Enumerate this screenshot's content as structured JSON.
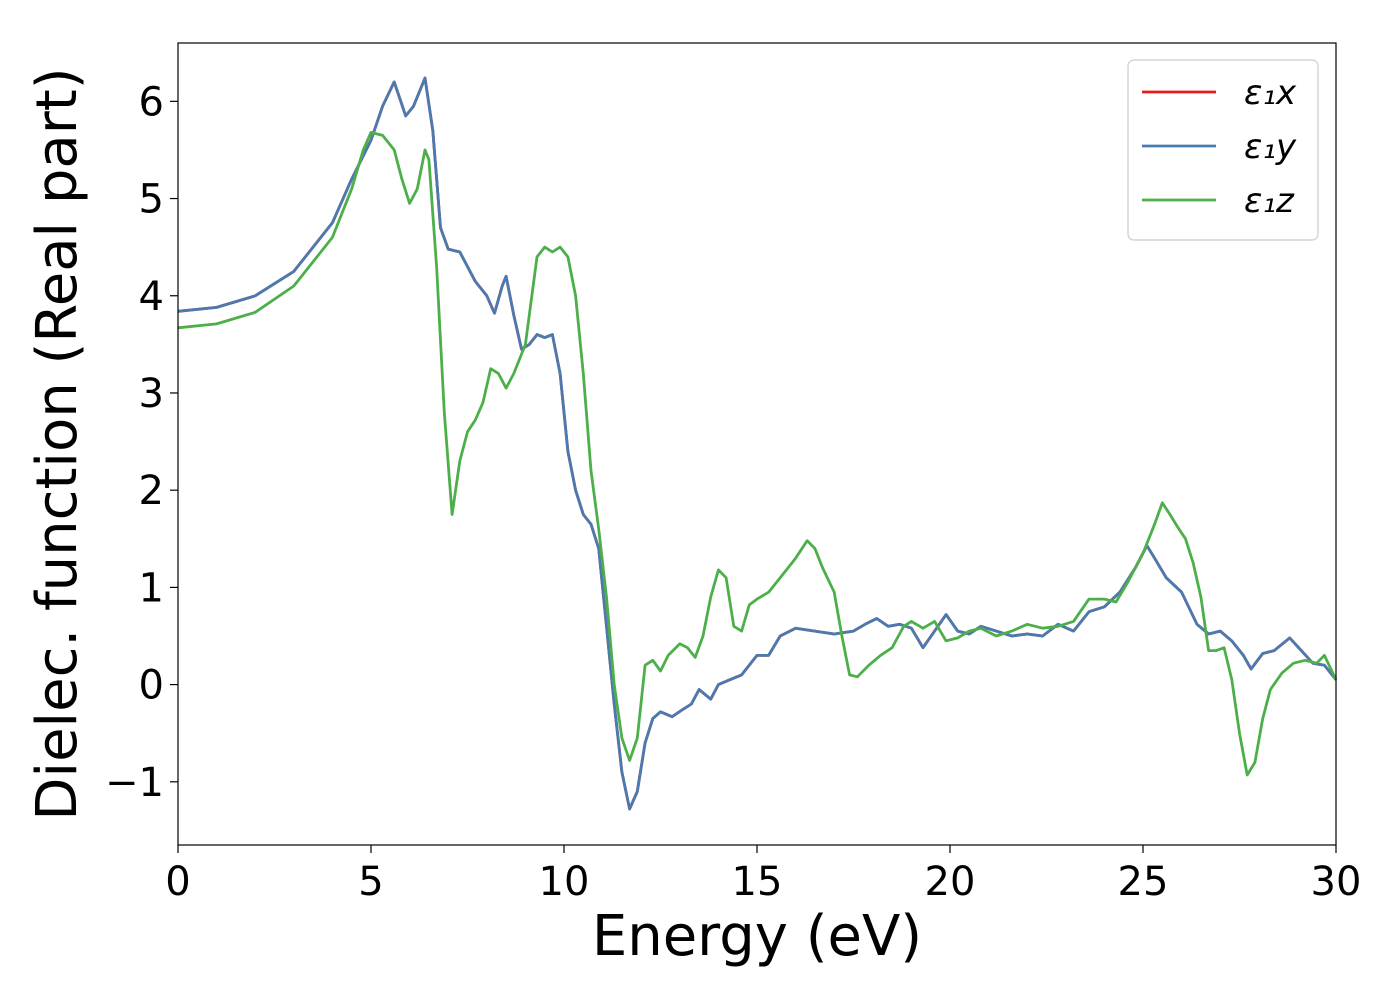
{
  "chart_data": {
    "type": "line",
    "xlabel": "Energy (eV)",
    "ylabel": "Dielec. function (Real part)",
    "xlim": [
      0,
      30
    ],
    "ylim": [
      -1.65,
      6.6
    ],
    "xticks": [
      0,
      5,
      10,
      15,
      20,
      25,
      30
    ],
    "yticks": [
      -1,
      0,
      1,
      2,
      3,
      4,
      5,
      6
    ],
    "xtick_labels": [
      "0",
      "5",
      "10",
      "15",
      "20",
      "25",
      "30"
    ],
    "ytick_labels": [
      "−1",
      "0",
      "1",
      "2",
      "3",
      "4",
      "5",
      "6"
    ],
    "grid": false,
    "legend_position": "top-right",
    "series": [
      {
        "name": "ε₁x",
        "color": "#e41a1c",
        "points": [
          [
            0,
            3.84
          ],
          [
            1,
            3.88
          ],
          [
            2,
            4.0
          ],
          [
            3,
            4.25
          ],
          [
            4,
            4.75
          ],
          [
            4.5,
            5.2
          ],
          [
            5,
            5.6
          ],
          [
            5.3,
            5.95
          ],
          [
            5.6,
            6.2
          ],
          [
            5.9,
            5.85
          ],
          [
            6.1,
            5.95
          ],
          [
            6.4,
            6.24
          ],
          [
            6.6,
            5.7
          ],
          [
            6.8,
            4.7
          ],
          [
            7.0,
            4.48
          ],
          [
            7.3,
            4.45
          ],
          [
            7.7,
            4.15
          ],
          [
            8.0,
            4.0
          ],
          [
            8.2,
            3.82
          ],
          [
            8.4,
            4.1
          ],
          [
            8.5,
            4.2
          ],
          [
            8.7,
            3.8
          ],
          [
            8.9,
            3.45
          ],
          [
            9.1,
            3.5
          ],
          [
            9.3,
            3.6
          ],
          [
            9.5,
            3.57
          ],
          [
            9.7,
            3.6
          ],
          [
            9.9,
            3.2
          ],
          [
            10.1,
            2.4
          ],
          [
            10.3,
            2.0
          ],
          [
            10.5,
            1.75
          ],
          [
            10.7,
            1.65
          ],
          [
            10.9,
            1.4
          ],
          [
            11.1,
            0.6
          ],
          [
            11.3,
            -0.2
          ],
          [
            11.5,
            -0.9
          ],
          [
            11.7,
            -1.28
          ],
          [
            11.9,
            -1.1
          ],
          [
            12.1,
            -0.6
          ],
          [
            12.3,
            -0.35
          ],
          [
            12.5,
            -0.28
          ],
          [
            12.8,
            -0.33
          ],
          [
            13.1,
            -0.25
          ],
          [
            13.3,
            -0.2
          ],
          [
            13.5,
            -0.05
          ],
          [
            13.8,
            -0.15
          ],
          [
            14.0,
            0.0
          ],
          [
            14.3,
            0.05
          ],
          [
            14.6,
            0.1
          ],
          [
            15.0,
            0.3
          ],
          [
            15.3,
            0.3
          ],
          [
            15.6,
            0.5
          ],
          [
            16.0,
            0.58
          ],
          [
            16.5,
            0.55
          ],
          [
            17.0,
            0.52
          ],
          [
            17.5,
            0.55
          ],
          [
            17.8,
            0.62
          ],
          [
            18.1,
            0.68
          ],
          [
            18.4,
            0.6
          ],
          [
            18.7,
            0.62
          ],
          [
            19.0,
            0.58
          ],
          [
            19.3,
            0.38
          ],
          [
            19.6,
            0.55
          ],
          [
            19.9,
            0.72
          ],
          [
            20.2,
            0.55
          ],
          [
            20.5,
            0.52
          ],
          [
            20.8,
            0.6
          ],
          [
            21.2,
            0.55
          ],
          [
            21.6,
            0.5
          ],
          [
            22.0,
            0.52
          ],
          [
            22.4,
            0.5
          ],
          [
            22.8,
            0.62
          ],
          [
            23.2,
            0.55
          ],
          [
            23.6,
            0.75
          ],
          [
            24.0,
            0.8
          ],
          [
            24.4,
            0.95
          ],
          [
            24.8,
            1.2
          ],
          [
            25.1,
            1.43
          ],
          [
            25.3,
            1.3
          ],
          [
            25.6,
            1.1
          ],
          [
            26.0,
            0.95
          ],
          [
            26.4,
            0.62
          ],
          [
            26.7,
            0.52
          ],
          [
            27.0,
            0.55
          ],
          [
            27.3,
            0.45
          ],
          [
            27.6,
            0.3
          ],
          [
            27.8,
            0.16
          ],
          [
            28.1,
            0.32
          ],
          [
            28.4,
            0.35
          ],
          [
            28.8,
            0.48
          ],
          [
            29.1,
            0.35
          ],
          [
            29.4,
            0.22
          ],
          [
            29.7,
            0.2
          ],
          [
            30.0,
            0.05
          ]
        ]
      },
      {
        "name": "ε₁y",
        "color": "#4a7bb0",
        "points": [
          [
            0,
            3.84
          ],
          [
            1,
            3.88
          ],
          [
            2,
            4.0
          ],
          [
            3,
            4.25
          ],
          [
            4,
            4.75
          ],
          [
            4.5,
            5.2
          ],
          [
            5,
            5.6
          ],
          [
            5.3,
            5.95
          ],
          [
            5.6,
            6.2
          ],
          [
            5.9,
            5.85
          ],
          [
            6.1,
            5.95
          ],
          [
            6.4,
            6.24
          ],
          [
            6.6,
            5.7
          ],
          [
            6.8,
            4.7
          ],
          [
            7.0,
            4.48
          ],
          [
            7.3,
            4.45
          ],
          [
            7.7,
            4.15
          ],
          [
            8.0,
            4.0
          ],
          [
            8.2,
            3.82
          ],
          [
            8.4,
            4.1
          ],
          [
            8.5,
            4.2
          ],
          [
            8.7,
            3.8
          ],
          [
            8.9,
            3.45
          ],
          [
            9.1,
            3.5
          ],
          [
            9.3,
            3.6
          ],
          [
            9.5,
            3.57
          ],
          [
            9.7,
            3.6
          ],
          [
            9.9,
            3.2
          ],
          [
            10.1,
            2.4
          ],
          [
            10.3,
            2.0
          ],
          [
            10.5,
            1.75
          ],
          [
            10.7,
            1.65
          ],
          [
            10.9,
            1.4
          ],
          [
            11.1,
            0.6
          ],
          [
            11.3,
            -0.2
          ],
          [
            11.5,
            -0.9
          ],
          [
            11.7,
            -1.28
          ],
          [
            11.9,
            -1.1
          ],
          [
            12.1,
            -0.6
          ],
          [
            12.3,
            -0.35
          ],
          [
            12.5,
            -0.28
          ],
          [
            12.8,
            -0.33
          ],
          [
            13.1,
            -0.25
          ],
          [
            13.3,
            -0.2
          ],
          [
            13.5,
            -0.05
          ],
          [
            13.8,
            -0.15
          ],
          [
            14.0,
            0.0
          ],
          [
            14.3,
            0.05
          ],
          [
            14.6,
            0.1
          ],
          [
            15.0,
            0.3
          ],
          [
            15.3,
            0.3
          ],
          [
            15.6,
            0.5
          ],
          [
            16.0,
            0.58
          ],
          [
            16.5,
            0.55
          ],
          [
            17.0,
            0.52
          ],
          [
            17.5,
            0.55
          ],
          [
            17.8,
            0.62
          ],
          [
            18.1,
            0.68
          ],
          [
            18.4,
            0.6
          ],
          [
            18.7,
            0.62
          ],
          [
            19.0,
            0.58
          ],
          [
            19.3,
            0.38
          ],
          [
            19.6,
            0.55
          ],
          [
            19.9,
            0.72
          ],
          [
            20.2,
            0.55
          ],
          [
            20.5,
            0.52
          ],
          [
            20.8,
            0.6
          ],
          [
            21.2,
            0.55
          ],
          [
            21.6,
            0.5
          ],
          [
            22.0,
            0.52
          ],
          [
            22.4,
            0.5
          ],
          [
            22.8,
            0.62
          ],
          [
            23.2,
            0.55
          ],
          [
            23.6,
            0.75
          ],
          [
            24.0,
            0.8
          ],
          [
            24.4,
            0.95
          ],
          [
            24.8,
            1.2
          ],
          [
            25.1,
            1.43
          ],
          [
            25.3,
            1.3
          ],
          [
            25.6,
            1.1
          ],
          [
            26.0,
            0.95
          ],
          [
            26.4,
            0.62
          ],
          [
            26.7,
            0.52
          ],
          [
            27.0,
            0.55
          ],
          [
            27.3,
            0.45
          ],
          [
            27.6,
            0.3
          ],
          [
            27.8,
            0.16
          ],
          [
            28.1,
            0.32
          ],
          [
            28.4,
            0.35
          ],
          [
            28.8,
            0.48
          ],
          [
            29.1,
            0.35
          ],
          [
            29.4,
            0.22
          ],
          [
            29.7,
            0.2
          ],
          [
            30.0,
            0.05
          ]
        ]
      },
      {
        "name": "ε₁z",
        "color": "#4daf4a",
        "points": [
          [
            0,
            3.67
          ],
          [
            1,
            3.71
          ],
          [
            2,
            3.83
          ],
          [
            3,
            4.1
          ],
          [
            4,
            4.6
          ],
          [
            4.5,
            5.1
          ],
          [
            4.8,
            5.5
          ],
          [
            5.0,
            5.68
          ],
          [
            5.3,
            5.65
          ],
          [
            5.6,
            5.5
          ],
          [
            5.8,
            5.2
          ],
          [
            6.0,
            4.95
          ],
          [
            6.2,
            5.1
          ],
          [
            6.4,
            5.5
          ],
          [
            6.5,
            5.4
          ],
          [
            6.7,
            4.3
          ],
          [
            6.9,
            2.8
          ],
          [
            7.1,
            1.75
          ],
          [
            7.3,
            2.3
          ],
          [
            7.5,
            2.6
          ],
          [
            7.7,
            2.72
          ],
          [
            7.9,
            2.9
          ],
          [
            8.1,
            3.25
          ],
          [
            8.3,
            3.2
          ],
          [
            8.5,
            3.05
          ],
          [
            8.7,
            3.2
          ],
          [
            9.0,
            3.5
          ],
          [
            9.3,
            4.4
          ],
          [
            9.5,
            4.5
          ],
          [
            9.7,
            4.45
          ],
          [
            9.9,
            4.5
          ],
          [
            10.1,
            4.4
          ],
          [
            10.3,
            4.0
          ],
          [
            10.5,
            3.2
          ],
          [
            10.7,
            2.2
          ],
          [
            10.9,
            1.6
          ],
          [
            11.1,
            0.9
          ],
          [
            11.3,
            0.0
          ],
          [
            11.5,
            -0.55
          ],
          [
            11.7,
            -0.78
          ],
          [
            11.9,
            -0.55
          ],
          [
            12.1,
            0.2
          ],
          [
            12.3,
            0.25
          ],
          [
            12.5,
            0.14
          ],
          [
            12.7,
            0.3
          ],
          [
            13.0,
            0.42
          ],
          [
            13.2,
            0.38
          ],
          [
            13.4,
            0.28
          ],
          [
            13.6,
            0.5
          ],
          [
            13.8,
            0.9
          ],
          [
            14.0,
            1.18
          ],
          [
            14.2,
            1.1
          ],
          [
            14.4,
            0.6
          ],
          [
            14.6,
            0.55
          ],
          [
            14.8,
            0.82
          ],
          [
            15.0,
            0.88
          ],
          [
            15.3,
            0.95
          ],
          [
            15.6,
            1.1
          ],
          [
            16.0,
            1.3
          ],
          [
            16.3,
            1.48
          ],
          [
            16.5,
            1.4
          ],
          [
            16.7,
            1.2
          ],
          [
            17.0,
            0.95
          ],
          [
            17.2,
            0.5
          ],
          [
            17.4,
            0.1
          ],
          [
            17.6,
            0.08
          ],
          [
            17.9,
            0.2
          ],
          [
            18.2,
            0.3
          ],
          [
            18.5,
            0.38
          ],
          [
            18.8,
            0.6
          ],
          [
            19.0,
            0.65
          ],
          [
            19.3,
            0.58
          ],
          [
            19.6,
            0.65
          ],
          [
            19.9,
            0.45
          ],
          [
            20.2,
            0.48
          ],
          [
            20.5,
            0.55
          ],
          [
            20.8,
            0.58
          ],
          [
            21.2,
            0.5
          ],
          [
            21.6,
            0.55
          ],
          [
            22.0,
            0.62
          ],
          [
            22.4,
            0.58
          ],
          [
            22.8,
            0.6
          ],
          [
            23.2,
            0.65
          ],
          [
            23.6,
            0.88
          ],
          [
            24.0,
            0.88
          ],
          [
            24.3,
            0.85
          ],
          [
            24.6,
            1.05
          ],
          [
            25.0,
            1.35
          ],
          [
            25.3,
            1.65
          ],
          [
            25.5,
            1.87
          ],
          [
            25.7,
            1.75
          ],
          [
            25.9,
            1.62
          ],
          [
            26.1,
            1.5
          ],
          [
            26.3,
            1.25
          ],
          [
            26.5,
            0.9
          ],
          [
            26.7,
            0.35
          ],
          [
            26.9,
            0.35
          ],
          [
            27.1,
            0.38
          ],
          [
            27.3,
            0.05
          ],
          [
            27.5,
            -0.5
          ],
          [
            27.7,
            -0.93
          ],
          [
            27.9,
            -0.8
          ],
          [
            28.1,
            -0.35
          ],
          [
            28.3,
            -0.05
          ],
          [
            28.6,
            0.12
          ],
          [
            28.9,
            0.22
          ],
          [
            29.2,
            0.25
          ],
          [
            29.5,
            0.22
          ],
          [
            29.7,
            0.3
          ],
          [
            30.0,
            0.05
          ]
        ]
      }
    ]
  }
}
